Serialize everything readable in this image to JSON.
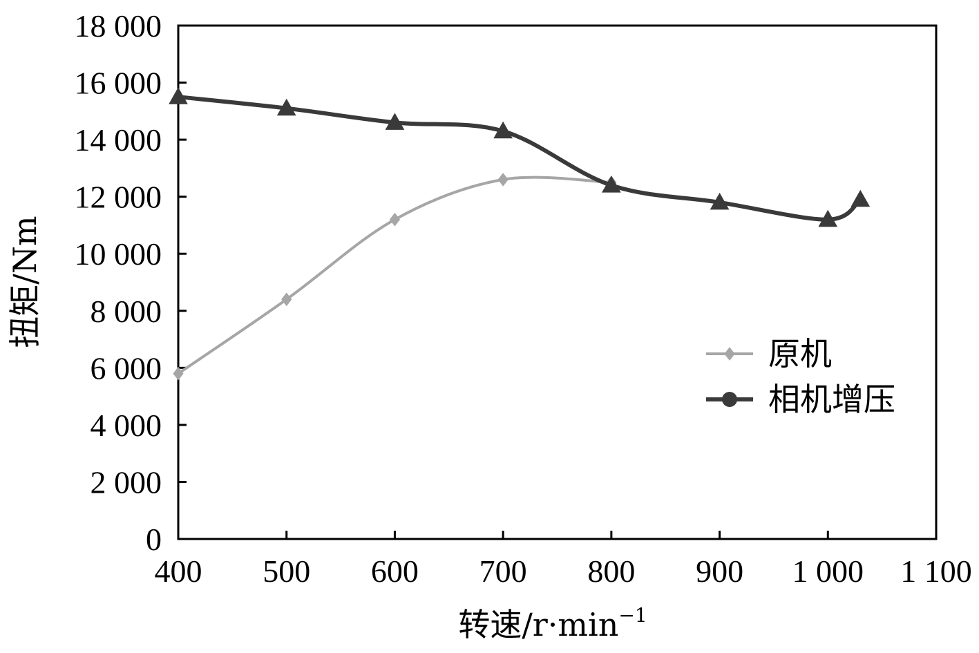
{
  "chart_data": {
    "type": "line",
    "xlabel": "转速/r·min",
    "xlabel_sup": "−1",
    "ylabel": "扭矩/Nm",
    "xlim": [
      400,
      1100
    ],
    "ylim": [
      0,
      18000
    ],
    "x_ticks": [
      400,
      500,
      600,
      700,
      800,
      900,
      1000,
      1100
    ],
    "x_tick_labels": [
      "400",
      "500",
      "600",
      "700",
      "800",
      "900",
      "1 000",
      "1 100"
    ],
    "y_ticks": [
      0,
      2000,
      4000,
      6000,
      8000,
      10000,
      12000,
      14000,
      16000,
      18000
    ],
    "y_tick_labels": [
      "0",
      "2 000",
      "4 000",
      "6 000",
      "8 000",
      "10 000",
      "12 000",
      "14 000",
      "16 000",
      "18 000"
    ],
    "grid": false,
    "legend_position": "right",
    "series": [
      {
        "name": "原机",
        "color": "#a6a6a6",
        "marker": "diamond",
        "x": [
          400,
          500,
          600,
          700,
          800
        ],
        "y": [
          5800,
          8400,
          11200,
          12600,
          12500
        ]
      },
      {
        "name": "相机增压",
        "color": "#3a3a3a",
        "marker": "triangle",
        "legend_marker": "circle",
        "x": [
          400,
          500,
          600,
          700,
          800,
          900,
          1000,
          1030
        ],
        "y": [
          15500,
          15100,
          14600,
          14300,
          12400,
          11800,
          11200,
          11900
        ]
      }
    ]
  }
}
